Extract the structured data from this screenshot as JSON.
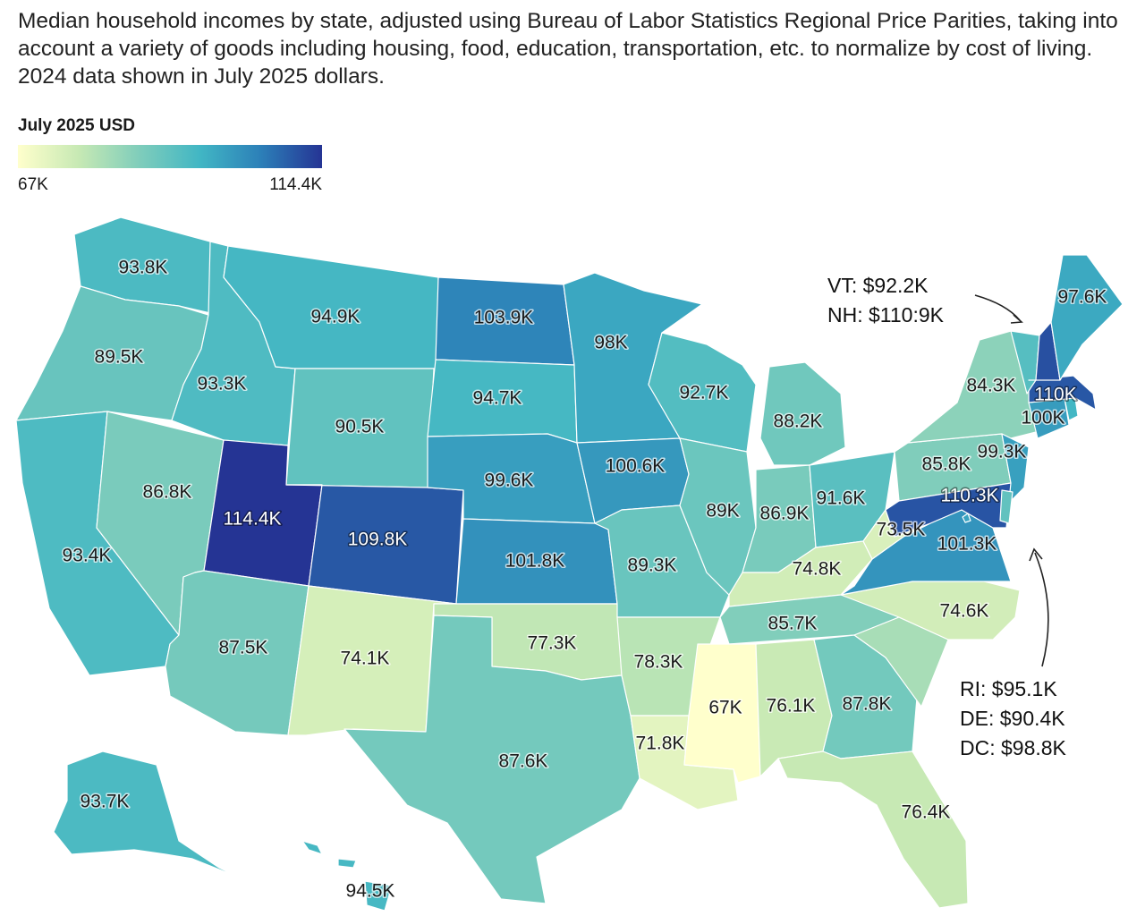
{
  "title": "Median household incomes by state, adjusted using Bureau of Labor Statistics Regional Price Parities, taking into account a variety of goods including housing, food, education, transportation, etc. to normalize by cost of living. 2024 data shown in July 2025 dollars.",
  "legend": {
    "title": "July 2025 USD",
    "min_label": "67K",
    "max_label": "114.4K"
  },
  "notes": {
    "northeast": [
      "VT: $92.2K",
      "NH: $110:9K"
    ],
    "midatlantic": [
      "RI: $95.1K",
      "DE: $90.4K",
      "DC: $98.8K"
    ]
  },
  "chart_data": {
    "type": "choropleth",
    "units": "July 2025 USD",
    "scale": {
      "min": 67,
      "max": 114.4
    },
    "states": [
      {
        "state": "WA",
        "value": 93.8,
        "label": "93.8K"
      },
      {
        "state": "OR",
        "value": 89.5,
        "label": "89.5K"
      },
      {
        "state": "CA",
        "value": 93.4,
        "label": "93.4K"
      },
      {
        "state": "NV",
        "value": 86.8,
        "label": "86.8K"
      },
      {
        "state": "ID",
        "value": 93.3,
        "label": "93.3K"
      },
      {
        "state": "MT",
        "value": 94.9,
        "label": "94.9K"
      },
      {
        "state": "WY",
        "value": 90.5,
        "label": "90.5K"
      },
      {
        "state": "UT",
        "value": 114.4,
        "label": "114.4K"
      },
      {
        "state": "AZ",
        "value": 87.5,
        "label": "87.5K"
      },
      {
        "state": "CO",
        "value": 109.8,
        "label": "109.8K"
      },
      {
        "state": "NM",
        "value": 74.1,
        "label": "74.1K"
      },
      {
        "state": "ND",
        "value": 103.9,
        "label": "103.9K"
      },
      {
        "state": "SD",
        "value": 94.7,
        "label": "94.7K"
      },
      {
        "state": "NE",
        "value": 99.6,
        "label": "99.6K"
      },
      {
        "state": "KS",
        "value": 101.8,
        "label": "101.8K"
      },
      {
        "state": "OK",
        "value": 77.3,
        "label": "77.3K"
      },
      {
        "state": "TX",
        "value": 87.6,
        "label": "87.6K"
      },
      {
        "state": "MN",
        "value": 98,
        "label": "98K"
      },
      {
        "state": "IA",
        "value": 100.6,
        "label": "100.6K"
      },
      {
        "state": "MO",
        "value": 89.3,
        "label": "89.3K"
      },
      {
        "state": "AR",
        "value": 78.3,
        "label": "78.3K"
      },
      {
        "state": "LA",
        "value": 71.8,
        "label": "71.8K"
      },
      {
        "state": "WI",
        "value": 92.7,
        "label": "92.7K"
      },
      {
        "state": "IL",
        "value": 89,
        "label": "89K"
      },
      {
        "state": "MI",
        "value": 88.2,
        "label": "88.2K"
      },
      {
        "state": "IN",
        "value": 86.9,
        "label": "86.9K"
      },
      {
        "state": "OH",
        "value": 91.6,
        "label": "91.6K"
      },
      {
        "state": "KY",
        "value": 74.8,
        "label": "74.8K"
      },
      {
        "state": "TN",
        "value": 85.7,
        "label": "85.7K"
      },
      {
        "state": "MS",
        "value": 67,
        "label": "67K"
      },
      {
        "state": "AL",
        "value": 76.1,
        "label": "76.1K"
      },
      {
        "state": "GA",
        "value": 87.8,
        "label": "87.8K"
      },
      {
        "state": "FL",
        "value": 76.4,
        "label": "76.4K"
      },
      {
        "state": "SC",
        "value": 80.5,
        "label": ""
      },
      {
        "state": "NC",
        "value": 74.6,
        "label": "74.6K"
      },
      {
        "state": "VA",
        "value": 101.3,
        "label": "101.3K"
      },
      {
        "state": "WV",
        "value": 73.5,
        "label": "73.5K"
      },
      {
        "state": "PA",
        "value": 85.8,
        "label": "85.8K"
      },
      {
        "state": "NY",
        "value": 84.3,
        "label": "84.3K"
      },
      {
        "state": "NJ",
        "value": 99.3,
        "label": "99.3K"
      },
      {
        "state": "MD",
        "value": 110.3,
        "label": "110.3K"
      },
      {
        "state": "DE",
        "value": 90.4,
        "label": ""
      },
      {
        "state": "DC",
        "value": 98.8,
        "label": ""
      },
      {
        "state": "CT",
        "value": 100,
        "label": "100K"
      },
      {
        "state": "RI",
        "value": 95.1,
        "label": ""
      },
      {
        "state": "MA",
        "value": 110,
        "label": "110K"
      },
      {
        "state": "VT",
        "value": 92.2,
        "label": ""
      },
      {
        "state": "NH",
        "value": 110.9,
        "label": ""
      },
      {
        "state": "ME",
        "value": 97.6,
        "label": "97.6K"
      },
      {
        "state": "AK",
        "value": 93.7,
        "label": "93.7K"
      },
      {
        "state": "HI",
        "value": 94.5,
        "label": "94.5K"
      }
    ]
  }
}
